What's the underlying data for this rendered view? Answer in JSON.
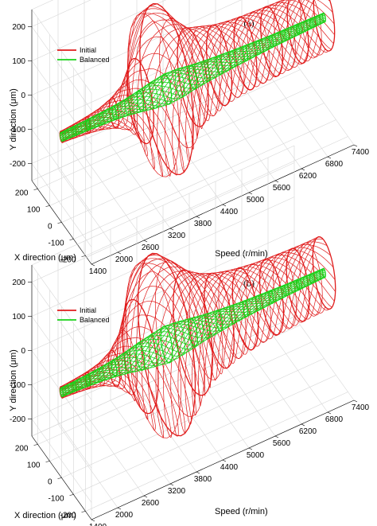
{
  "chart_data": [
    {
      "type": "line",
      "panel_label": "(a)",
      "xlabel": "Speed (r/min)",
      "ylabel": "Y direction (μm)",
      "zlabel": "X direction (μm)",
      "speed_ticks": [
        "1400",
        "2000",
        "2600",
        "3200",
        "3800",
        "4400",
        "5000",
        "5600",
        "6200",
        "6800",
        "7400"
      ],
      "y_ticks": [
        "200",
        "100",
        "0",
        "-100",
        "-200"
      ],
      "x_ticks": [
        "200",
        "100",
        "0",
        "-100",
        "-200"
      ],
      "speed_range": [
        1400,
        7400
      ],
      "y_range": [
        -250,
        250
      ],
      "x_range": [
        -250,
        250
      ],
      "grid": true,
      "legend": "top-left",
      "series": [
        {
          "name": "Initial",
          "color": "#e01b1b",
          "speed": [
            1400,
            1700,
            2000,
            2300,
            2600,
            2900,
            3200,
            3500,
            3800,
            4100,
            4400,
            4700,
            5000,
            5300,
            5600,
            5900,
            6200,
            6500,
            6800,
            7100,
            7400
          ],
          "radius": [
            15,
            18,
            22,
            28,
            40,
            62,
            112,
            215,
            225,
            170,
            130,
            118,
            106,
            100,
            96,
            94,
            92,
            90,
            89,
            88,
            88
          ]
        },
        {
          "name": "Balanced",
          "color": "#19d219",
          "speed": [
            1400,
            1700,
            2000,
            2300,
            2600,
            2900,
            3200,
            3500,
            3800,
            4100,
            4400,
            4700,
            5000,
            5300,
            5600,
            5900,
            6200,
            6500,
            6800,
            7100,
            7400
          ],
          "radius": [
            12,
            13,
            14,
            16,
            18,
            22,
            28,
            35,
            40,
            38,
            32,
            28,
            25,
            22,
            20,
            18,
            16,
            15,
            14,
            13,
            12
          ]
        }
      ]
    },
    {
      "type": "line",
      "panel_label": "(b)",
      "xlabel": "Speed (r/min)",
      "ylabel": "Y direction (μm)",
      "zlabel": "X direction (μm)",
      "speed_ticks": [
        "1400",
        "2000",
        "2600",
        "3200",
        "3800",
        "4400",
        "5000",
        "5600",
        "6200",
        "6800",
        "7400"
      ],
      "y_ticks": [
        "200",
        "100",
        "0",
        "-100",
        "-200"
      ],
      "x_ticks": [
        "200",
        "100",
        "0",
        "-100",
        "-200"
      ],
      "speed_range": [
        1400,
        7400
      ],
      "y_range": [
        -250,
        250
      ],
      "x_range": [
        -250,
        250
      ],
      "grid": true,
      "legend": "top-left",
      "series": [
        {
          "name": "Initial",
          "color": "#e01b1b",
          "speed": [
            1400,
            1700,
            2000,
            2300,
            2600,
            2900,
            3200,
            3500,
            3800,
            4100,
            4400,
            4700,
            5000,
            5300,
            5600,
            5900,
            6200,
            6500,
            6800,
            7100,
            7400
          ],
          "radius": [
            15,
            18,
            22,
            30,
            48,
            85,
            150,
            230,
            240,
            205,
            165,
            140,
            125,
            115,
            108,
            103,
            100,
            98,
            96,
            95,
            95
          ]
        },
        {
          "name": "Balanced",
          "color": "#19d219",
          "speed": [
            1400,
            1700,
            2000,
            2300,
            2600,
            2900,
            3200,
            3500,
            3800,
            4100,
            4400,
            4700,
            5000,
            5300,
            5600,
            5900,
            6200,
            6500,
            6800,
            7100,
            7400
          ],
          "radius": [
            12,
            13,
            15,
            18,
            22,
            28,
            36,
            42,
            48,
            44,
            38,
            32,
            28,
            24,
            21,
            19,
            17,
            15,
            14,
            13,
            12
          ]
        }
      ]
    }
  ]
}
